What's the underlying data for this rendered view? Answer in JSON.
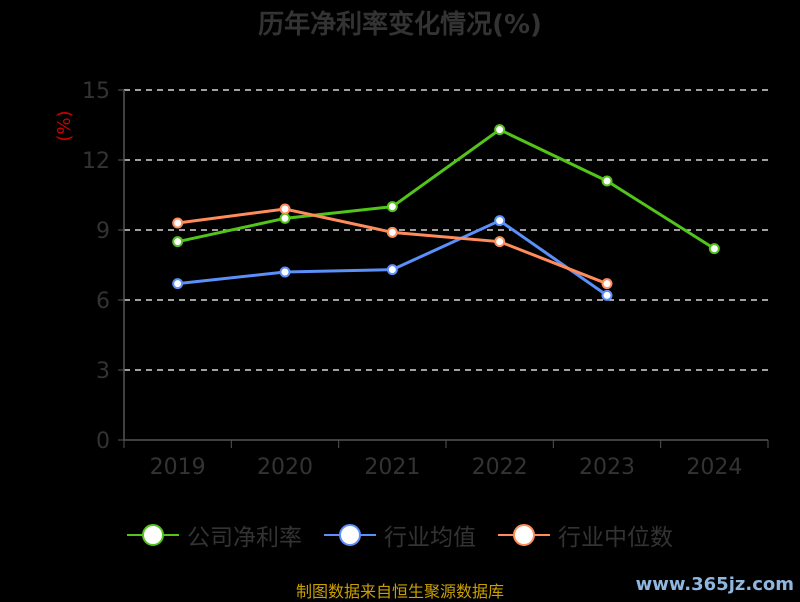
{
  "title": "历年净利率变化情况(%)",
  "ylabel": "(%)",
  "source": "制图数据来自恒生聚源数据库",
  "watermark": "www.365jz.com",
  "colors": {
    "axis": "#555555",
    "tick_text": "#333333",
    "ylabel": "#cc0000",
    "grid": "#ffffff"
  },
  "chart_data": {
    "type": "line",
    "title": "历年净利率变化情况(%)",
    "xlabel": "",
    "ylabel": "(%)",
    "categories": [
      "2019",
      "2020",
      "2021",
      "2022",
      "2023",
      "2024"
    ],
    "ylim": [
      0,
      15
    ],
    "yticks": [
      0,
      3,
      6,
      9,
      12,
      15
    ],
    "grid": true,
    "legend_position": "bottom",
    "series": [
      {
        "name": "公司净利率",
        "color": "#52c41a",
        "values": [
          8.5,
          9.5,
          10.0,
          13.3,
          11.1,
          8.2
        ]
      },
      {
        "name": "行业均值",
        "color": "#5b8ff9",
        "values": [
          6.7,
          7.2,
          7.3,
          9.4,
          6.2,
          null
        ]
      },
      {
        "name": "行业中位数",
        "color": "#ff8c5a",
        "values": [
          9.3,
          9.9,
          8.9,
          8.5,
          6.7,
          null
        ]
      }
    ]
  }
}
